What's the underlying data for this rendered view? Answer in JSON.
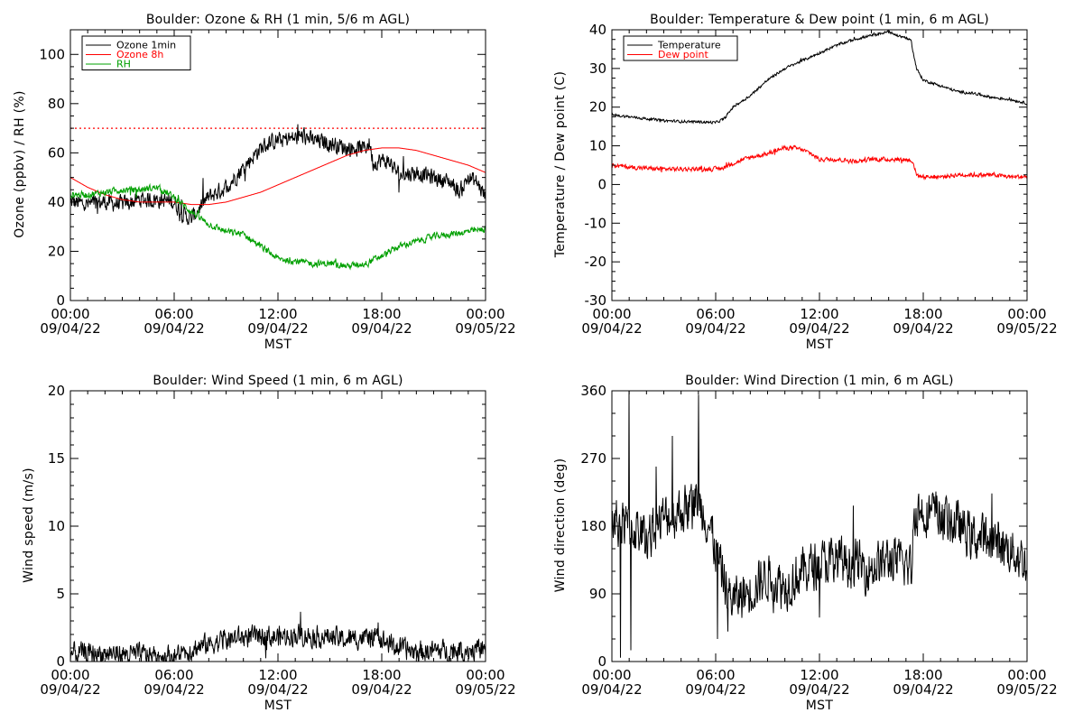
{
  "chart_data": [
    {
      "type": "line",
      "title": "Boulder: Ozone & RH (1 min, 5/6 m AGL)",
      "ylabel": "Ozone (ppbv) / RH (%)",
      "xlabel": "MST",
      "xlim": [
        0,
        24
      ],
      "ylim": [
        0,
        110
      ],
      "x_ticks": [
        {
          "time": "00:00",
          "date": "09/04/22"
        },
        {
          "time": "06:00",
          "date": "09/04/22"
        },
        {
          "time": "12:00",
          "date": "09/04/22"
        },
        {
          "time": "18:00",
          "date": "09/04/22"
        },
        {
          "time": "00:00",
          "date": "09/05/22"
        }
      ],
      "y_ticks": [
        0,
        20,
        40,
        60,
        80,
        100
      ],
      "reference_line": {
        "y": 70,
        "color": "#ff0000",
        "style": "dotted"
      },
      "legend_position": "top-left",
      "series": [
        {
          "name": "Ozone 1min",
          "color": "#000000",
          "noise": 3,
          "x": [
            0,
            1,
            2,
            3,
            4,
            5,
            6,
            6.5,
            7,
            7.5,
            8,
            9,
            10,
            11,
            11.5,
            12,
            13,
            13.5,
            14,
            15,
            16,
            17,
            17.3,
            17.5,
            18,
            18.5,
            19,
            20,
            21,
            22,
            22.5,
            23,
            23.5,
            24
          ],
          "y": [
            40,
            39,
            40,
            39,
            41,
            41,
            40,
            35,
            33,
            38,
            42,
            46,
            54,
            62,
            64,
            65,
            66,
            67,
            65,
            64,
            62,
            62,
            64,
            56,
            57,
            56,
            51,
            52,
            50,
            48,
            44,
            50,
            48,
            42
          ]
        },
        {
          "name": "Ozone 8h",
          "color": "#ff0000",
          "noise": 0,
          "x": [
            0,
            1,
            2,
            3,
            4,
            5,
            6,
            7,
            8,
            9,
            10,
            11,
            12,
            13,
            14,
            15,
            16,
            17,
            18,
            19,
            20,
            21,
            22,
            23,
            24
          ],
          "y": [
            50,
            46,
            43,
            41,
            40,
            40,
            40,
            39,
            39,
            40,
            42,
            44,
            47,
            50,
            53,
            56,
            59,
            61,
            62,
            62,
            61,
            59,
            57,
            55,
            52
          ]
        },
        {
          "name": "RH",
          "color": "#00a000",
          "noise": 1.2,
          "x": [
            0,
            1,
            2,
            3,
            4,
            5,
            6,
            7,
            8,
            9,
            10,
            11,
            12,
            13,
            14,
            15,
            16,
            17,
            18,
            19,
            20,
            21,
            22,
            23,
            24
          ],
          "y": [
            43,
            43,
            44,
            45,
            45,
            46,
            42,
            36,
            31,
            28,
            27,
            22,
            17,
            16,
            15,
            15,
            14,
            15,
            18,
            22,
            24,
            26,
            27,
            28,
            29
          ]
        }
      ]
    },
    {
      "type": "line",
      "title": "Boulder: Temperature & Dew point (1 min, 6 m AGL)",
      "ylabel": "Temperature / Dew point (C)",
      "xlabel": "MST",
      "xlim": [
        0,
        24
      ],
      "ylim": [
        -30,
        40
      ],
      "x_ticks": [
        {
          "time": "00:00",
          "date": "09/04/22"
        },
        {
          "time": "06:00",
          "date": "09/04/22"
        },
        {
          "time": "12:00",
          "date": "09/04/22"
        },
        {
          "time": "18:00",
          "date": "09/04/22"
        },
        {
          "time": "00:00",
          "date": "09/05/22"
        }
      ],
      "y_ticks": [
        -30,
        -20,
        -10,
        0,
        10,
        20,
        30,
        40
      ],
      "legend_position": "top-left",
      "series": [
        {
          "name": "Temperature",
          "color": "#000000",
          "noise": 0.3,
          "x": [
            0,
            1,
            2,
            3,
            4,
            5,
            6,
            6.5,
            7,
            8,
            9,
            10,
            11,
            12,
            13,
            14,
            15,
            16,
            16.5,
            17,
            17.3,
            17.6,
            18,
            19,
            20,
            21,
            22,
            23,
            24
          ],
          "y": [
            18,
            17.5,
            17,
            16.5,
            16.3,
            16.2,
            16,
            17,
            20,
            23,
            27,
            30,
            32,
            34,
            36,
            37.5,
            38.5,
            39.5,
            38.5,
            38,
            37,
            30,
            27,
            25.5,
            24,
            23.5,
            22.5,
            22,
            21
          ]
        },
        {
          "name": "Dew point",
          "color": "#ff0000",
          "noise": 0.5,
          "x": [
            0,
            1,
            2,
            3,
            4,
            5,
            6,
            6.5,
            7,
            8,
            9,
            10,
            10.5,
            11,
            11.5,
            12,
            13,
            14,
            15,
            16,
            17,
            17.4,
            17.6,
            18,
            19,
            20,
            21,
            22,
            23,
            24
          ],
          "y": [
            5,
            4.5,
            4.2,
            4,
            4,
            4,
            4,
            4.5,
            5.5,
            7,
            8,
            9.5,
            9.5,
            9,
            8,
            6.5,
            6.5,
            6,
            6.5,
            6.5,
            6.5,
            6,
            2.5,
            2,
            2,
            2.5,
            2.5,
            2.5,
            2,
            2
          ]
        }
      ]
    },
    {
      "type": "line",
      "title": "Boulder: Wind Speed (1 min, 6 m AGL)",
      "ylabel": "Wind speed (m/s)",
      "xlabel": "MST",
      "xlim": [
        0,
        24
      ],
      "ylim": [
        0,
        20
      ],
      "x_ticks": [
        {
          "time": "00:00",
          "date": "09/04/22"
        },
        {
          "time": "06:00",
          "date": "09/04/22"
        },
        {
          "time": "12:00",
          "date": "09/04/22"
        },
        {
          "time": "18:00",
          "date": "09/04/22"
        },
        {
          "time": "00:00",
          "date": "09/05/22"
        }
      ],
      "y_ticks": [
        0,
        5,
        10,
        15,
        20
      ],
      "series": [
        {
          "color": "#000000",
          "noise": 0.7,
          "floor": 0,
          "x": [
            0,
            2,
            4,
            6,
            7,
            8,
            9,
            10,
            11,
            12,
            13,
            14,
            15,
            16,
            17,
            18,
            19,
            20,
            21,
            22,
            23,
            24
          ],
          "y": [
            0.6,
            0.6,
            0.5,
            0.4,
            0.9,
            1.3,
            1.6,
            1.8,
            1.9,
            1.8,
            2,
            1.9,
            1.8,
            1.6,
            1.8,
            1.6,
            1,
            0.7,
            0.8,
            0.8,
            0.9,
            0.8
          ]
        }
      ]
    },
    {
      "type": "line",
      "title": "Boulder: Wind Direction (1 min, 6 m AGL)",
      "ylabel": "Wind direction (deg)",
      "xlabel": "MST",
      "xlim": [
        0,
        24
      ],
      "ylim": [
        0,
        360
      ],
      "x_ticks": [
        {
          "time": "00:00",
          "date": "09/04/22"
        },
        {
          "time": "06:00",
          "date": "09/04/22"
        },
        {
          "time": "12:00",
          "date": "09/04/22"
        },
        {
          "time": "18:00",
          "date": "09/04/22"
        },
        {
          "time": "00:00",
          "date": "09/05/22"
        }
      ],
      "y_ticks": [
        0,
        90,
        180,
        270,
        360
      ],
      "series": [
        {
          "color": "#000000",
          "noise": 28,
          "floor": 0,
          "ceil": 360,
          "spikes": [
            [
              0.5,
              5
            ],
            [
              1.0,
              360
            ],
            [
              1.1,
              15
            ],
            [
              3.5,
              300
            ],
            [
              5,
              355
            ],
            [
              6.1,
              30
            ],
            [
              6.7,
              40
            ]
          ],
          "x": [
            0,
            1,
            2,
            3,
            4,
            5,
            5.5,
            6,
            6.5,
            7,
            8,
            9,
            10,
            11,
            12,
            13,
            14,
            15,
            16,
            17,
            17.3,
            17.5,
            18,
            19,
            20,
            21,
            22,
            23,
            24
          ],
          "y": [
            185,
            180,
            165,
            190,
            200,
            215,
            190,
            150,
            105,
            80,
            95,
            115,
            100,
            120,
            130,
            135,
            130,
            125,
            135,
            130,
            120,
            200,
            200,
            195,
            180,
            165,
            160,
            150,
            130
          ]
        }
      ]
    }
  ]
}
